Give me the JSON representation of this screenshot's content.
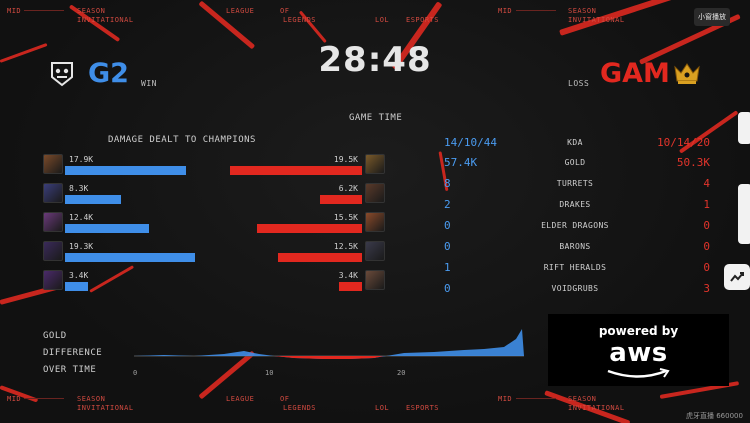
{
  "ticker": {
    "top": [
      "MID",
      "SEASON",
      "INVITATIONAL",
      "LEAGUE",
      "OF",
      "LEGENDS",
      "LOL",
      "ESPORTS",
      "MID",
      "SEASON",
      "INVITATIONAL"
    ],
    "bottom": [
      "MID",
      "SEASON",
      "INVITATIONAL",
      "LEAGUE",
      "OF",
      "LEGENDS",
      "LOL",
      "ESPORTS",
      "MID",
      "SEASON",
      "INVITATIONAL"
    ]
  },
  "game_time_value": "28:48",
  "game_time_label": "GAME TIME",
  "team_left": {
    "tag": "G2",
    "result": "WIN",
    "color": "#3f8ee8"
  },
  "team_right": {
    "tag": "GAM",
    "result": "LOSS",
    "color": "#e2281f"
  },
  "damage_title": "DAMAGE DEALT TO CHAMPIONS",
  "damage_left": [
    {
      "label": "17.9K",
      "value": 17.9
    },
    {
      "label": "8.3K",
      "value": 8.3
    },
    {
      "label": "12.4K",
      "value": 12.4
    },
    {
      "label": "19.3K",
      "value": 19.3
    },
    {
      "label": "3.4K",
      "value": 3.4
    }
  ],
  "damage_right": [
    {
      "label": "19.5K",
      "value": 19.5
    },
    {
      "label": "6.2K",
      "value": 6.2
    },
    {
      "label": "15.5K",
      "value": 15.5
    },
    {
      "label": "12.5K",
      "value": 12.5
    },
    {
      "label": "3.4K",
      "value": 3.4
    }
  ],
  "stats": [
    {
      "name": "KDA",
      "left": "14/10/44",
      "right": "10/14/20"
    },
    {
      "name": "GOLD",
      "left": "57.4K",
      "right": "50.3K"
    },
    {
      "name": "TURRETS",
      "left": "8",
      "right": "4"
    },
    {
      "name": "DRAKES",
      "left": "2",
      "right": "1"
    },
    {
      "name": "ELDER DRAGONS",
      "left": "0",
      "right": "0"
    },
    {
      "name": "BARONS",
      "left": "0",
      "right": "0"
    },
    {
      "name": "RIFT HERALDS",
      "left": "1",
      "right": "0"
    },
    {
      "name": "VOIDGRUBS",
      "left": "0",
      "right": "3"
    }
  ],
  "gold_diff": {
    "title_lines": [
      "GOLD",
      "DIFFERENCE",
      "OVER TIME"
    ],
    "axis_ticks": [
      "0",
      "10",
      "20"
    ]
  },
  "sponsor": {
    "line1": "powered by",
    "line2": "aws"
  },
  "overlay": {
    "mini_window_label": "小窗播放",
    "watermark": "虎牙直播 660000"
  },
  "colors": {
    "blue": "#3f8ee8",
    "red": "#e2281f",
    "accent_red": "#c8261e"
  }
}
